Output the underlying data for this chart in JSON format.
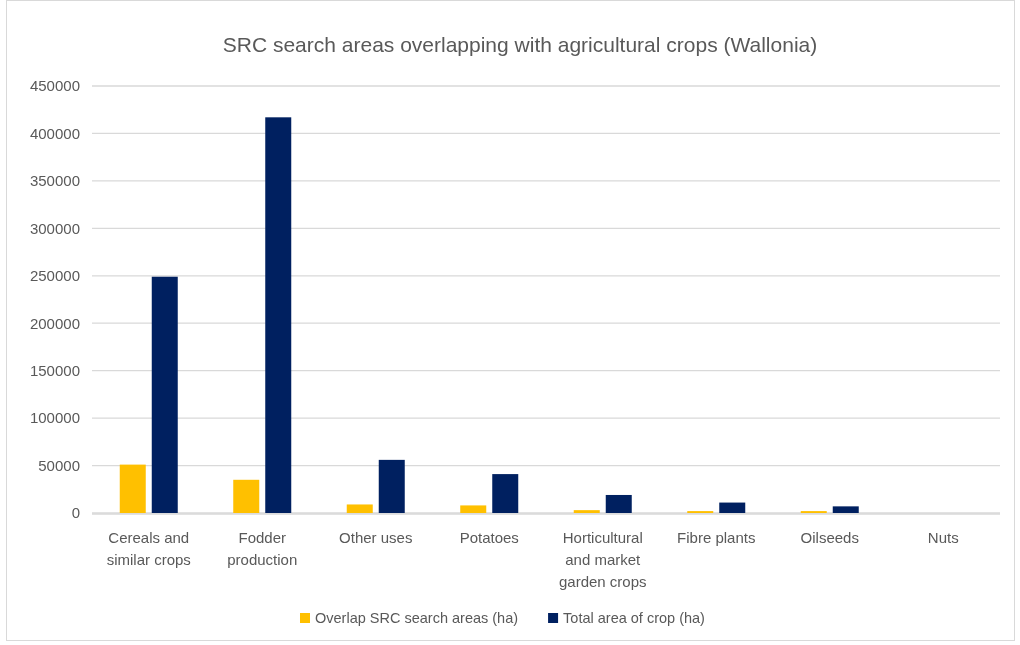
{
  "chart_data": {
    "type": "bar",
    "title": "SRC search areas overlapping with agricultural crops (Wallonia)",
    "categories": [
      "Cereals and similar crops",
      "Fodder production",
      "Other uses",
      "Potatoes",
      "Horticultural and market garden crops",
      "Fibre plants",
      "Oilseeds",
      "Nuts"
    ],
    "series": [
      {
        "name": "Overlap SRC search areas (ha)",
        "color": "#ffc000",
        "values": [
          51000,
          35000,
          9000,
          8000,
          3000,
          2000,
          2000,
          0
        ]
      },
      {
        "name": "Total area of crop (ha)",
        "color": "#002060",
        "values": [
          249000,
          417000,
          56000,
          41000,
          19000,
          11000,
          7000,
          0
        ]
      }
    ],
    "ylim": [
      0,
      450000
    ],
    "yticks": [
      0,
      50000,
      100000,
      150000,
      200000,
      250000,
      300000,
      350000,
      400000,
      450000
    ],
    "grid": "y",
    "legend": "bottom"
  }
}
